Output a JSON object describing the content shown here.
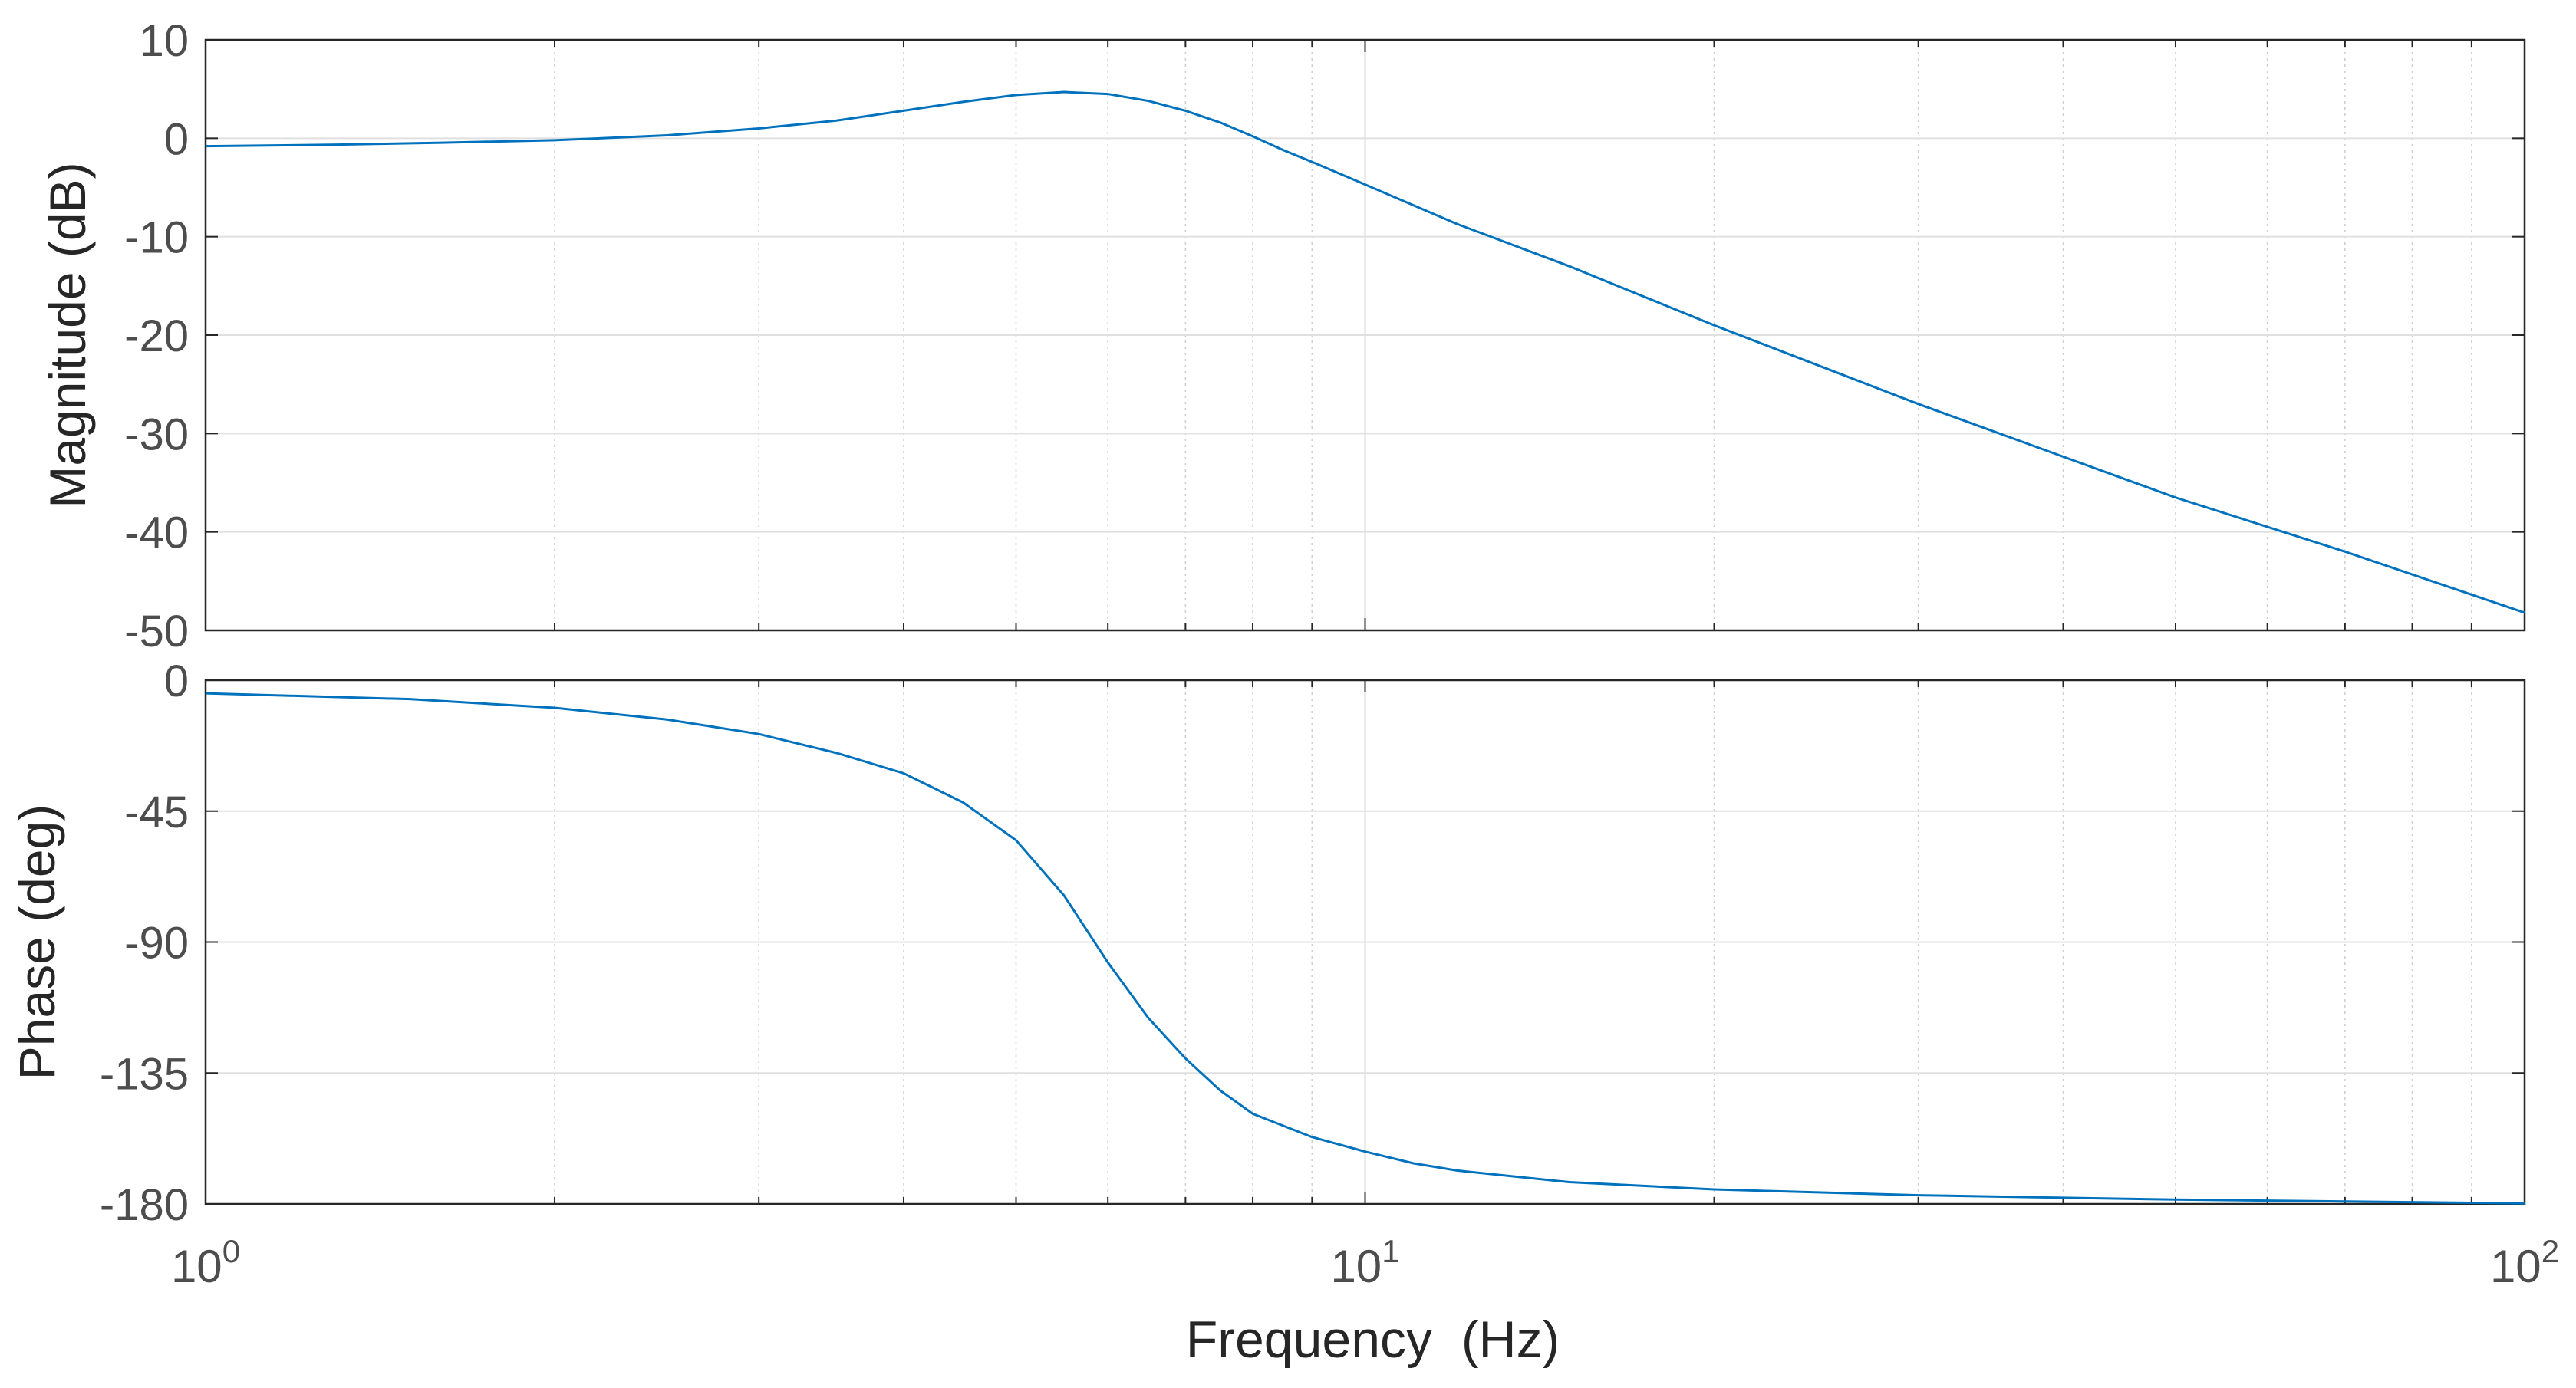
{
  "chart_data": [
    {
      "type": "line",
      "panel": "magnitude",
      "xlabel": "",
      "ylabel": "Magnitude (dB)",
      "xscale": "log",
      "xlim": [
        1,
        100
      ],
      "ylim": [
        -50,
        10
      ],
      "yticks": [
        10,
        0,
        -10,
        -20,
        -30,
        -40,
        -50
      ],
      "yticklabels": [
        "10",
        "0",
        "-10",
        "-20",
        "-30",
        "-40",
        "-50"
      ],
      "grid": true,
      "line_color": "#0072bd",
      "series": [
        {
          "x": [
            1,
            1.3,
            1.6,
            2,
            2.5,
            3,
            3.5,
            4,
            4.5,
            5,
            5.5,
            6,
            6.5,
            7,
            7.5,
            8,
            8.5,
            9,
            10,
            12,
            15,
            20,
            30,
            50,
            70,
            100
          ],
          "y": [
            -0.8,
            -0.65,
            -0.45,
            -0.2,
            0.3,
            1.0,
            1.8,
            2.8,
            3.7,
            4.4,
            4.7,
            4.5,
            3.8,
            2.8,
            1.6,
            0.2,
            -1.2,
            -2.4,
            -4.7,
            -8.7,
            -13.0,
            -19.0,
            -27.0,
            -36.5,
            -42.0,
            -48.2
          ]
        }
      ]
    },
    {
      "type": "line",
      "panel": "phase",
      "xlabel": "Frequency  (Hz)",
      "ylabel": "Phase (deg)",
      "xscale": "log",
      "xlim": [
        1,
        100
      ],
      "ylim": [
        -180,
        0
      ],
      "yticks": [
        0,
        -45,
        -90,
        -135,
        -180
      ],
      "yticklabels": [
        "0",
        "-45",
        "-90",
        "-135",
        "-180"
      ],
      "xticks": [
        1,
        10,
        100
      ],
      "xtick_bases": [
        "10",
        "10",
        "10"
      ],
      "xtick_exponents": [
        "0",
        "1",
        "2"
      ],
      "grid": true,
      "line_color": "#0072bd",
      "series": [
        {
          "x": [
            1,
            1.5,
            2,
            2.5,
            3,
            3.5,
            4,
            4.5,
            5,
            5.5,
            6,
            6.5,
            7,
            7.5,
            8,
            9,
            10,
            11,
            12,
            15,
            20,
            30,
            50,
            100
          ],
          "y": [
            -4.5,
            -6.5,
            -9.5,
            -13.5,
            -18.5,
            -25,
            -32,
            -42,
            -55,
            -74,
            -97,
            -116,
            -130,
            -141,
            -149,
            -157,
            -162,
            -166,
            -168.5,
            -172.5,
            -175,
            -177,
            -178.5,
            -179.8
          ]
        }
      ]
    }
  ]
}
